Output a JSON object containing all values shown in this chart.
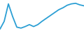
{
  "x": [
    0,
    1,
    2,
    3,
    4,
    5,
    6,
    7,
    8,
    9,
    10,
    11,
    12,
    13,
    14,
    15,
    16,
    17,
    18,
    19,
    20
  ],
  "y": [
    4.5,
    8.5,
    17.5,
    11.0,
    5.5,
    5.0,
    5.8,
    6.8,
    5.8,
    6.8,
    8.5,
    10.0,
    11.5,
    13.0,
    14.5,
    15.5,
    16.8,
    17.5,
    17.8,
    17.0,
    16.5
  ],
  "line_color": "#2b9fd4",
  "linewidth": 1.3,
  "background_color": "#ffffff",
  "ylim": [
    3.5,
    19.5
  ],
  "xlim": [
    0,
    20
  ]
}
